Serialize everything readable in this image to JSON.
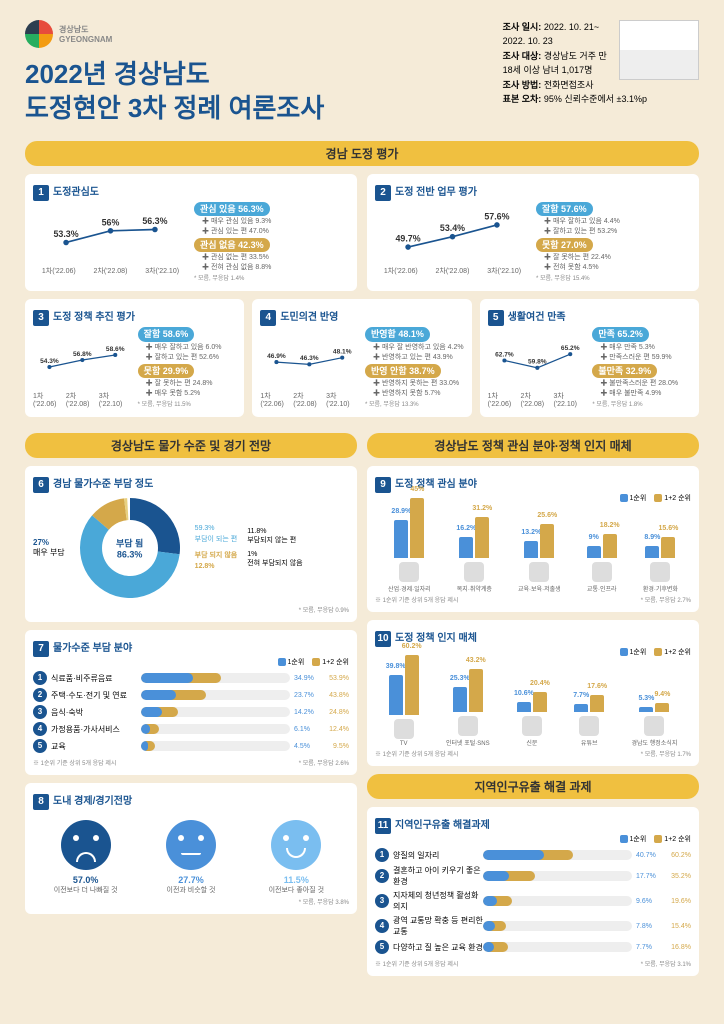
{
  "logo": {
    "name": "경상남도",
    "sub": "GYEONGNAM"
  },
  "title_l1": "2022년 경상남도",
  "title_l2": "도정현안 3차 정례 여론조사",
  "meta": {
    "date_label": "조사 일시:",
    "date": "2022. 10. 21~ 2022. 10. 23",
    "target_label": "조사 대상:",
    "target": "경상남도 거주 만 18세 이상 남녀 1,017명",
    "method_label": "조사 방법:",
    "method": "전화면접조사",
    "error_label": "표본 오차:",
    "error": "95% 신뢰수준에서 ±3.1%p"
  },
  "section_eval": "경남 도정 평가",
  "charts": [
    {
      "n": "1",
      "title": "도정관심도",
      "pts": [
        53.3,
        56.0,
        56.3
      ],
      "x": [
        "1차('22.06)",
        "2차('22.08)",
        "3차('22.10)"
      ],
      "main_pos": {
        "label": "관심 있음 56.3%",
        "color": "#4aa8d8"
      },
      "sub_pos": [
        {
          "l": "매우 관심 있음",
          "v": "9.3%"
        },
        {
          "l": "관심 있는 편",
          "v": "47.0%"
        }
      ],
      "main_neg": {
        "label": "관심 없음 42.3%",
        "color": "#d4a84a"
      },
      "sub_neg": [
        {
          "l": "관심 없는 편",
          "v": "33.5%"
        },
        {
          "l": "전혀 관심 없음",
          "v": "8.8%"
        }
      ],
      "note": "* 모름, 무응답 1.4%"
    },
    {
      "n": "2",
      "title": "도정 전반 업무 평가",
      "pts": [
        49.7,
        53.4,
        57.6
      ],
      "x": [
        "1차('22.06)",
        "2차('22.08)",
        "3차('22.10)"
      ],
      "main_pos": {
        "label": "잘함 57.6%",
        "color": "#4aa8d8"
      },
      "sub_pos": [
        {
          "l": "매우 잘하고 있음",
          "v": "4.4%"
        },
        {
          "l": "잘하고 있는 편",
          "v": "53.2%"
        }
      ],
      "main_neg": {
        "label": "못함 27.0%",
        "color": "#d4a84a"
      },
      "sub_neg": [
        {
          "l": "잘 못하는 편",
          "v": "22.4%"
        },
        {
          "l": "전혀 못함",
          "v": "4.5%"
        }
      ],
      "note": "* 모름, 무응답 15.4%"
    },
    {
      "n": "3",
      "title": "도정 정책 추진 평가",
      "pts": [
        54.3,
        56.8,
        58.6
      ],
      "x": [
        "1차('22.06)",
        "2차('22.08)",
        "3차('22.10)"
      ],
      "main_pos": {
        "label": "잘함 58.6%",
        "color": "#4aa8d8"
      },
      "sub_pos": [
        {
          "l": "매우 잘하고 있음",
          "v": "6.0%"
        },
        {
          "l": "잘하고 있는 편",
          "v": "52.6%"
        }
      ],
      "main_neg": {
        "label": "못함 29.9%",
        "color": "#d4a84a"
      },
      "sub_neg": [
        {
          "l": "잘 못하는 편",
          "v": "24.8%"
        },
        {
          "l": "매우 못함",
          "v": "5.2%"
        }
      ],
      "note": "* 모름, 무응답 11.5%"
    },
    {
      "n": "4",
      "title": "도민의견 반영",
      "pts": [
        46.9,
        46.3,
        48.1
      ],
      "x": [
        "1차('22.06)",
        "2차('22.08)",
        "3차('22.10)"
      ],
      "main_pos": {
        "label": "반영함 48.1%",
        "color": "#4aa8d8"
      },
      "sub_pos": [
        {
          "l": "매우 잘 반영하고 있음",
          "v": "4.2%"
        },
        {
          "l": "반영하고 있는 편",
          "v": "43.9%"
        }
      ],
      "main_neg": {
        "label": "반영 안함 38.7%",
        "color": "#d4a84a"
      },
      "sub_neg": [
        {
          "l": "반영하지 못하는 편",
          "v": "33.0%"
        },
        {
          "l": "반영하지 못함",
          "v": "5.7%"
        }
      ],
      "note": "* 모름, 무응답 13.3%"
    },
    {
      "n": "5",
      "title": "생활여건 만족",
      "pts": [
        62.7,
        59.8,
        65.2
      ],
      "x": [
        "1차('22.06)",
        "2차('22.08)",
        "3차('22.10)"
      ],
      "main_pos": {
        "label": "만족 65.2%",
        "color": "#4aa8d8"
      },
      "sub_pos": [
        {
          "l": "매우 만족",
          "v": "5.3%"
        },
        {
          "l": "만족스러운 편",
          "v": "59.9%"
        }
      ],
      "main_neg": {
        "label": "불만족 32.9%",
        "color": "#d4a84a"
      },
      "sub_neg": [
        {
          "l": "불만족스러운 편",
          "v": "28.0%"
        },
        {
          "l": "매우 불만족",
          "v": "4.9%"
        }
      ],
      "note": "* 모름, 무응답 1.8%"
    }
  ],
  "section_price": "경상남도 물가 수준 및 경기 전망",
  "section_policy": "경상남도 정책 관심 분야·정책 인지 매체",
  "donut": {
    "n": "6",
    "title": "경남 물가수준 부담 정도",
    "big_label": "부담 됨",
    "big_val": "86.3%",
    "parts": [
      {
        "l": "매우 부담",
        "v": 27.0,
        "color": "#1a5490"
      },
      {
        "l": "부담이 되는 편",
        "v": 59.3,
        "color": "#4aa8d8"
      },
      {
        "l": "부담되지 않는 편",
        "v": 11.8,
        "color": "#d4a84a"
      },
      {
        "l": "전혀 부담되지 않음",
        "v": 1.0,
        "color": "#e8d080"
      }
    ],
    "neg_label": "부담 되지 않음",
    "neg_val": "12.8%",
    "note": "* 모름, 무응답 0.9%"
  },
  "bars7": {
    "n": "7",
    "title": "물가수준 부담 분야",
    "legend1": "1순위",
    "legend2": "1+2 순위",
    "items": [
      {
        "l": "식료품·비주류음료",
        "v1": 34.9,
        "v2": 53.9
      },
      {
        "l": "주택·수도·전기 및 연료",
        "v1": 23.7,
        "v2": 43.8
      },
      {
        "l": "음식·숙박",
        "v1": 14.2,
        "v2": 24.8
      },
      {
        "l": "가정용품·가사서비스",
        "v1": 6.1,
        "v2": 12.4
      },
      {
        "l": "교육",
        "v1": 4.5,
        "v2": 9.5
      }
    ],
    "note": "※ 1순위 기준 상위 5개 응답 제시",
    "note2": "* 모름, 무응답 2.6%"
  },
  "faces": {
    "n": "8",
    "title": "도내 경제/경기전망",
    "items": [
      {
        "v": "57.0%",
        "l": "이전보다 더 나빠질 것",
        "color": "#1a5490",
        "mood": "sad"
      },
      {
        "v": "27.7%",
        "l": "이전과 비슷할 것",
        "color": "#4a90d9",
        "mood": "neutral"
      },
      {
        "v": "11.5%",
        "l": "이전보다 좋아질 것",
        "color": "#7abef0",
        "mood": "happy"
      }
    ],
    "note": "* 모름, 무응답 3.8%"
  },
  "cols9": {
    "n": "9",
    "title": "도정 정책 관심 분야",
    "legend1": "1순위",
    "legend2": "1+2 순위",
    "items": [
      {
        "l": "산업·경제·일자리",
        "v1": 28.9,
        "v2": 45.0
      },
      {
        "l": "복지·취약계층",
        "v1": 16.2,
        "v2": 31.2
      },
      {
        "l": "교육·보육·저출생",
        "v1": 13.2,
        "v2": 25.6
      },
      {
        "l": "교통·인프라",
        "v1": 9.0,
        "v2": 18.2
      },
      {
        "l": "환경·기후변화",
        "v1": 8.9,
        "v2": 15.6
      }
    ],
    "note": "※ 1순위 기준 상위 5개 응답 제시",
    "note2": "* 모름, 무응답 2.7%"
  },
  "cols10": {
    "n": "10",
    "title": "도정 정책 인지 매체",
    "legend1": "1순위",
    "legend2": "1+2 순위",
    "items": [
      {
        "l": "TV",
        "v1": 39.8,
        "v2": 60.2
      },
      {
        "l": "인터넷 포털·SNS",
        "v1": 25.3,
        "v2": 43.2
      },
      {
        "l": "신문",
        "v1": 10.6,
        "v2": 20.4
      },
      {
        "l": "유튜브",
        "v1": 7.7,
        "v2": 17.6
      },
      {
        "l": "경남도 행정소식지",
        "v1": 5.3,
        "v2": 9.4
      }
    ],
    "note": "※ 1순위 기준 상위 5개 응답 제시",
    "note2": "* 모름, 무응답 1.7%"
  },
  "section_pop": "지역인구유출 해결 과제",
  "bars11": {
    "n": "11",
    "title": "지역인구유출 해결과제",
    "legend1": "1순위",
    "legend2": "1+2 순위",
    "items": [
      {
        "l": "양질의 일자리",
        "v1": 40.7,
        "v2": 60.2
      },
      {
        "l": "결혼하고 아이 키우기 좋은 환경",
        "v1": 17.7,
        "v2": 35.2
      },
      {
        "l": "지자체의 청년정책 활성화 의지",
        "v1": 9.6,
        "v2": 19.6
      },
      {
        "l": "광역 교통망 확충 등 편리한 교통",
        "v1": 7.8,
        "v2": 15.4
      },
      {
        "l": "다양하고 질 높은 교육 환경",
        "v1": 7.7,
        "v2": 16.8
      }
    ],
    "note": "※ 1순위 기준 상위 5개 응답 제시",
    "note2": "* 모름, 무응답 3.1%"
  }
}
